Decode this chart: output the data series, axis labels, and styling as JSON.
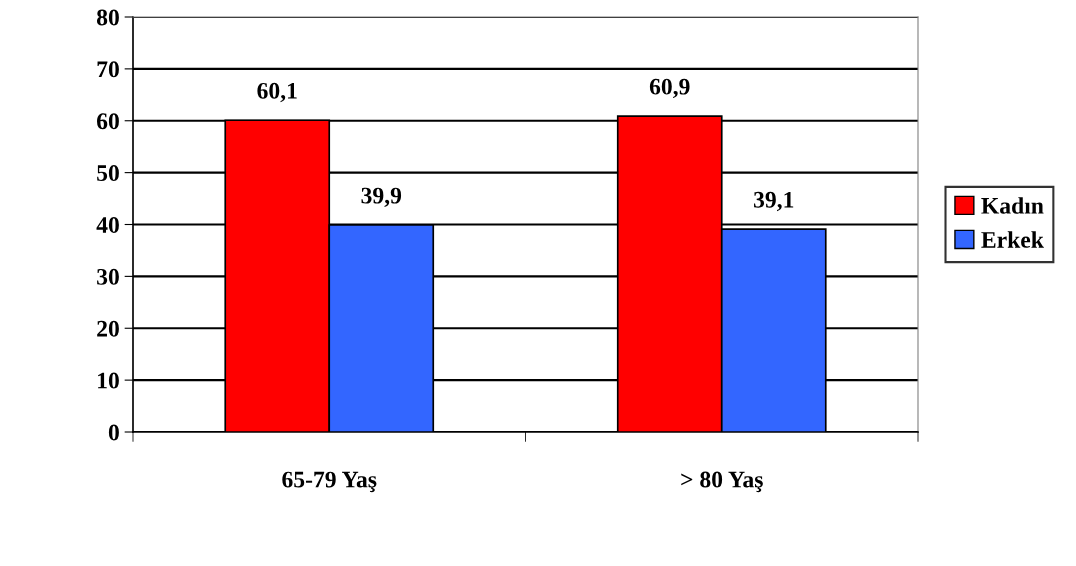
{
  "chart_data": {
    "type": "bar",
    "categories": [
      "65-79 Yaş",
      "> 80 Yaş"
    ],
    "series": [
      {
        "name": "Kadın",
        "color": "#ff0000",
        "values": [
          60.1,
          60.9
        ],
        "value_labels": [
          "60,1",
          "60,9"
        ]
      },
      {
        "name": "Erkek",
        "color": "#3366ff",
        "values": [
          39.9,
          39.1
        ],
        "value_labels": [
          "39,9",
          "39,1"
        ]
      }
    ],
    "ylim": [
      0,
      80
    ],
    "yticks": [
      0,
      10,
      20,
      30,
      40,
      50,
      60,
      70,
      80
    ],
    "grid": "y",
    "legend": "right"
  }
}
